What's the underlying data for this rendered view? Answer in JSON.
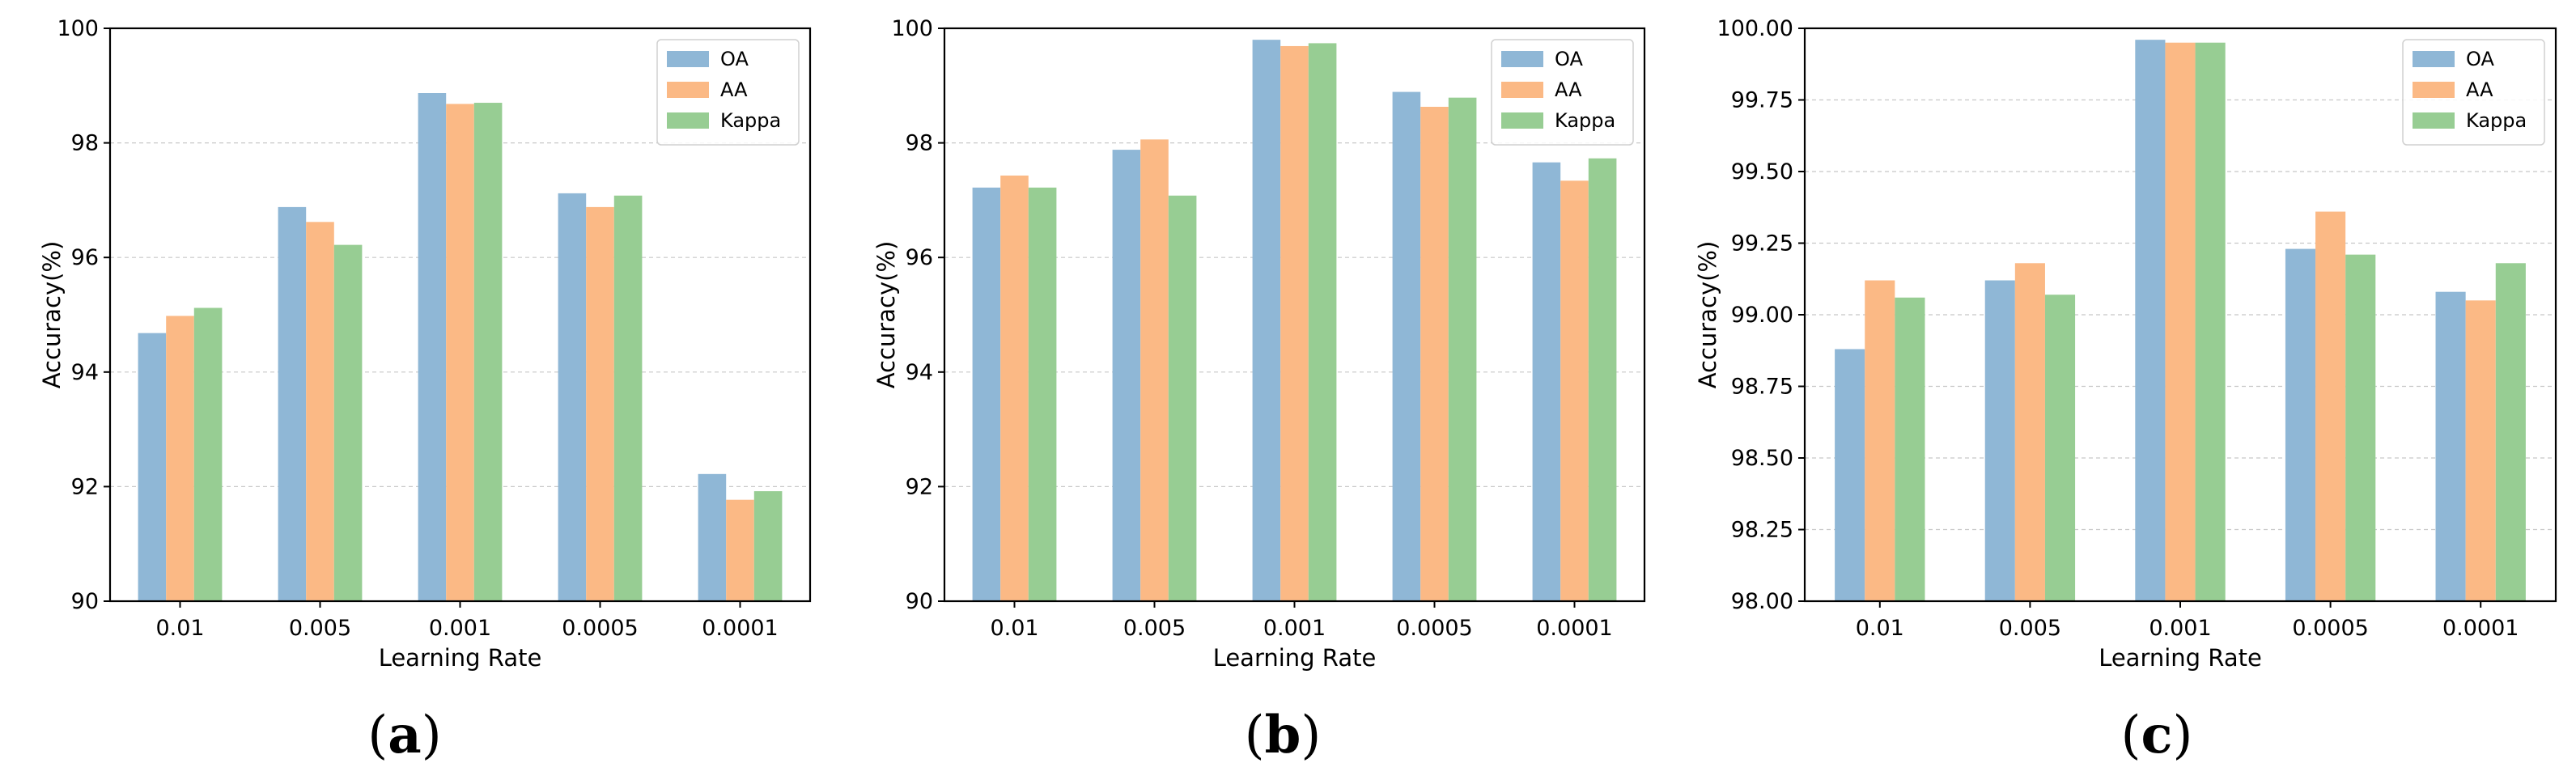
{
  "colors": {
    "OA": "#8fb7d6",
    "AA": "#fbb985",
    "Kappa": "#97cd93"
  },
  "chart_data": [
    {
      "type": "bar",
      "panel_label": "a",
      "categories": [
        "0.01",
        "0.005",
        "0.001",
        "0.0005",
        "0.0001"
      ],
      "series": [
        {
          "name": "OA",
          "values": [
            94.68,
            96.88,
            98.87,
            97.12,
            92.22
          ]
        },
        {
          "name": "AA",
          "values": [
            94.98,
            96.62,
            98.68,
            96.88,
            91.77
          ]
        },
        {
          "name": "Kappa",
          "values": [
            95.12,
            96.22,
            98.7,
            97.08,
            91.92
          ]
        }
      ],
      "xlabel": "Learning Rate",
      "ylabel": "Accuracy(%)",
      "ylim": [
        90,
        100
      ],
      "yticks": [
        "90",
        "92",
        "94",
        "96",
        "98",
        "100"
      ],
      "ytick_values": [
        90,
        92,
        94,
        96,
        98,
        100
      ],
      "grid": true,
      "legend": "top-right"
    },
    {
      "type": "bar",
      "panel_label": "b",
      "categories": [
        "0.01",
        "0.005",
        "0.001",
        "0.0005",
        "0.0001"
      ],
      "series": [
        {
          "name": "OA",
          "values": [
            97.22,
            97.88,
            99.8,
            98.89,
            97.66
          ]
        },
        {
          "name": "AA",
          "values": [
            97.43,
            98.06,
            99.69,
            98.63,
            97.34
          ]
        },
        {
          "name": "Kappa",
          "values": [
            97.22,
            97.08,
            99.74,
            98.79,
            97.73
          ]
        }
      ],
      "xlabel": "Learning Rate",
      "ylabel": "Accuracy(%)",
      "ylim": [
        90,
        100
      ],
      "yticks": [
        "90",
        "92",
        "94",
        "96",
        "98",
        "100"
      ],
      "ytick_values": [
        90,
        92,
        94,
        96,
        98,
        100
      ],
      "grid": true,
      "legend": "top-right"
    },
    {
      "type": "bar",
      "panel_label": "c",
      "categories": [
        "0.01",
        "0.005",
        "0.001",
        "0.0005",
        "0.0001"
      ],
      "series": [
        {
          "name": "OA",
          "values": [
            98.88,
            99.12,
            99.96,
            99.23,
            99.08
          ]
        },
        {
          "name": "AA",
          "values": [
            99.12,
            99.18,
            99.95,
            99.36,
            99.05
          ]
        },
        {
          "name": "Kappa",
          "values": [
            99.06,
            99.07,
            99.95,
            99.21,
            99.18
          ]
        }
      ],
      "xlabel": "Learning Rate",
      "ylabel": "Accuracy(%)",
      "ylim": [
        98,
        100
      ],
      "yticks": [
        "98.00",
        "98.25",
        "98.50",
        "98.75",
        "99.00",
        "99.25",
        "99.50",
        "99.75",
        "100.00"
      ],
      "ytick_values": [
        98,
        98.25,
        98.5,
        98.75,
        99,
        99.25,
        99.5,
        99.75,
        100
      ],
      "grid": true,
      "legend": "top-right"
    }
  ]
}
